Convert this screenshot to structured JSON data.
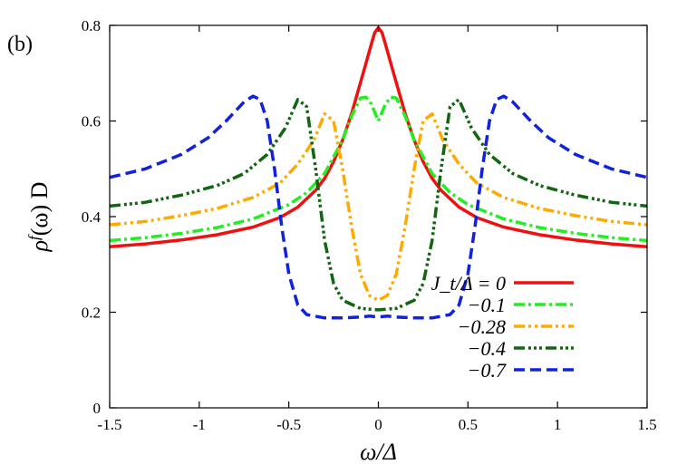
{
  "chart_data": {
    "type": "line",
    "panel_label": "(b)",
    "xlabel": "ω/Δ",
    "ylabel": "ρ^f(ω) D",
    "ylabel_parts": {
      "rho": "ρ",
      "sup": "f",
      "rest": "(ω) D"
    },
    "xlim": [
      -1.5,
      1.5
    ],
    "ylim": [
      0,
      0.8
    ],
    "xticks": [
      -1.5,
      -1,
      -0.5,
      0,
      0.5,
      1,
      1.5
    ],
    "xtick_labels": [
      "-1.5",
      "-1",
      "-0.5",
      "0",
      "0.5",
      "1",
      "1.5"
    ],
    "yticks": [
      0,
      0.2,
      0.4,
      0.6,
      0.8
    ],
    "ytick_labels": [
      "0",
      "0.2",
      "0.4",
      "0.6",
      "0.8"
    ],
    "grid": false,
    "legend_position": "right",
    "series": [
      {
        "name": "J_t/Δ = 0",
        "legend_text": "J_t/Δ = 0",
        "color": "#ee1111",
        "dash": "solid",
        "x": [
          -1.5,
          -1.3,
          -1.1,
          -0.9,
          -0.7,
          -0.55,
          -0.45,
          -0.35,
          -0.3,
          -0.25,
          -0.2,
          -0.15,
          -0.1,
          -0.07,
          -0.04,
          -0.02,
          0,
          0.02,
          0.04,
          0.07,
          0.1,
          0.15,
          0.2,
          0.25,
          0.3,
          0.35,
          0.45,
          0.55,
          0.7,
          0.9,
          1.1,
          1.3,
          1.5
        ],
        "y": [
          0.337,
          0.343,
          0.351,
          0.362,
          0.378,
          0.398,
          0.42,
          0.455,
          0.48,
          0.515,
          0.56,
          0.615,
          0.68,
          0.72,
          0.76,
          0.785,
          0.795,
          0.785,
          0.76,
          0.72,
          0.68,
          0.615,
          0.56,
          0.515,
          0.48,
          0.455,
          0.42,
          0.398,
          0.378,
          0.362,
          0.351,
          0.343,
          0.337
        ]
      },
      {
        "name": "-0.1",
        "legend_text": "−0.1",
        "color": "#22ee22",
        "dash": "dash-dot",
        "x": [
          -1.5,
          -1.3,
          -1.1,
          -0.9,
          -0.7,
          -0.5,
          -0.4,
          -0.3,
          -0.2,
          -0.15,
          -0.1,
          -0.07,
          -0.04,
          0,
          0.04,
          0.07,
          0.1,
          0.15,
          0.2,
          0.3,
          0.4,
          0.5,
          0.7,
          0.9,
          1.1,
          1.3,
          1.5
        ],
        "y": [
          0.35,
          0.356,
          0.365,
          0.377,
          0.395,
          0.425,
          0.45,
          0.49,
          0.56,
          0.61,
          0.648,
          0.65,
          0.636,
          0.6,
          0.636,
          0.65,
          0.648,
          0.61,
          0.56,
          0.49,
          0.45,
          0.425,
          0.395,
          0.377,
          0.365,
          0.356,
          0.35
        ]
      },
      {
        "name": "-0.28",
        "legend_text": "−0.28",
        "color": "#ffaa00",
        "dash": "dash-dot-dot",
        "x": [
          -1.5,
          -1.3,
          -1.1,
          -0.9,
          -0.7,
          -0.55,
          -0.45,
          -0.36,
          -0.3,
          -0.25,
          -0.2,
          -0.15,
          -0.1,
          -0.05,
          0,
          0.05,
          0.1,
          0.15,
          0.2,
          0.25,
          0.3,
          0.36,
          0.45,
          0.55,
          0.7,
          0.9,
          1.1,
          1.3,
          1.5
        ],
        "y": [
          0.383,
          0.39,
          0.402,
          0.417,
          0.44,
          0.47,
          0.51,
          0.56,
          0.615,
          0.6,
          0.5,
          0.38,
          0.28,
          0.235,
          0.225,
          0.235,
          0.28,
          0.38,
          0.5,
          0.6,
          0.615,
          0.56,
          0.51,
          0.47,
          0.44,
          0.417,
          0.402,
          0.39,
          0.383
        ]
      },
      {
        "name": "-0.4",
        "legend_text": "−0.4",
        "color": "#116611",
        "dash": "dash-dot-dot-dot",
        "x": [
          -1.5,
          -1.3,
          -1.1,
          -0.9,
          -0.75,
          -0.62,
          -0.52,
          -0.45,
          -0.4,
          -0.35,
          -0.3,
          -0.25,
          -0.2,
          -0.1,
          0,
          0.1,
          0.2,
          0.25,
          0.3,
          0.35,
          0.4,
          0.45,
          0.52,
          0.62,
          0.75,
          0.9,
          1.1,
          1.3,
          1.5
        ],
        "y": [
          0.422,
          0.43,
          0.445,
          0.465,
          0.49,
          0.53,
          0.585,
          0.645,
          0.63,
          0.5,
          0.35,
          0.26,
          0.225,
          0.208,
          0.205,
          0.208,
          0.225,
          0.26,
          0.35,
          0.5,
          0.63,
          0.645,
          0.585,
          0.53,
          0.49,
          0.465,
          0.445,
          0.43,
          0.422
        ]
      },
      {
        "name": "-0.7",
        "legend_text": "−0.7",
        "color": "#1122dd",
        "dash": "dashed",
        "x": [
          -1.5,
          -1.3,
          -1.1,
          -0.95,
          -0.85,
          -0.75,
          -0.7,
          -0.66,
          -0.62,
          -0.58,
          -0.54,
          -0.5,
          -0.45,
          -0.4,
          -0.3,
          -0.2,
          -0.1,
          -0.05,
          0,
          0.05,
          0.1,
          0.2,
          0.3,
          0.4,
          0.45,
          0.5,
          0.54,
          0.58,
          0.62,
          0.66,
          0.7,
          0.75,
          0.85,
          0.95,
          1.1,
          1.3,
          1.5
        ],
        "y": [
          0.482,
          0.5,
          0.53,
          0.565,
          0.6,
          0.64,
          0.652,
          0.645,
          0.6,
          0.5,
          0.38,
          0.28,
          0.215,
          0.195,
          0.188,
          0.188,
          0.19,
          0.192,
          0.19,
          0.192,
          0.19,
          0.188,
          0.188,
          0.195,
          0.215,
          0.28,
          0.38,
          0.5,
          0.6,
          0.645,
          0.652,
          0.64,
          0.6,
          0.565,
          0.53,
          0.5,
          0.482
        ]
      }
    ]
  }
}
